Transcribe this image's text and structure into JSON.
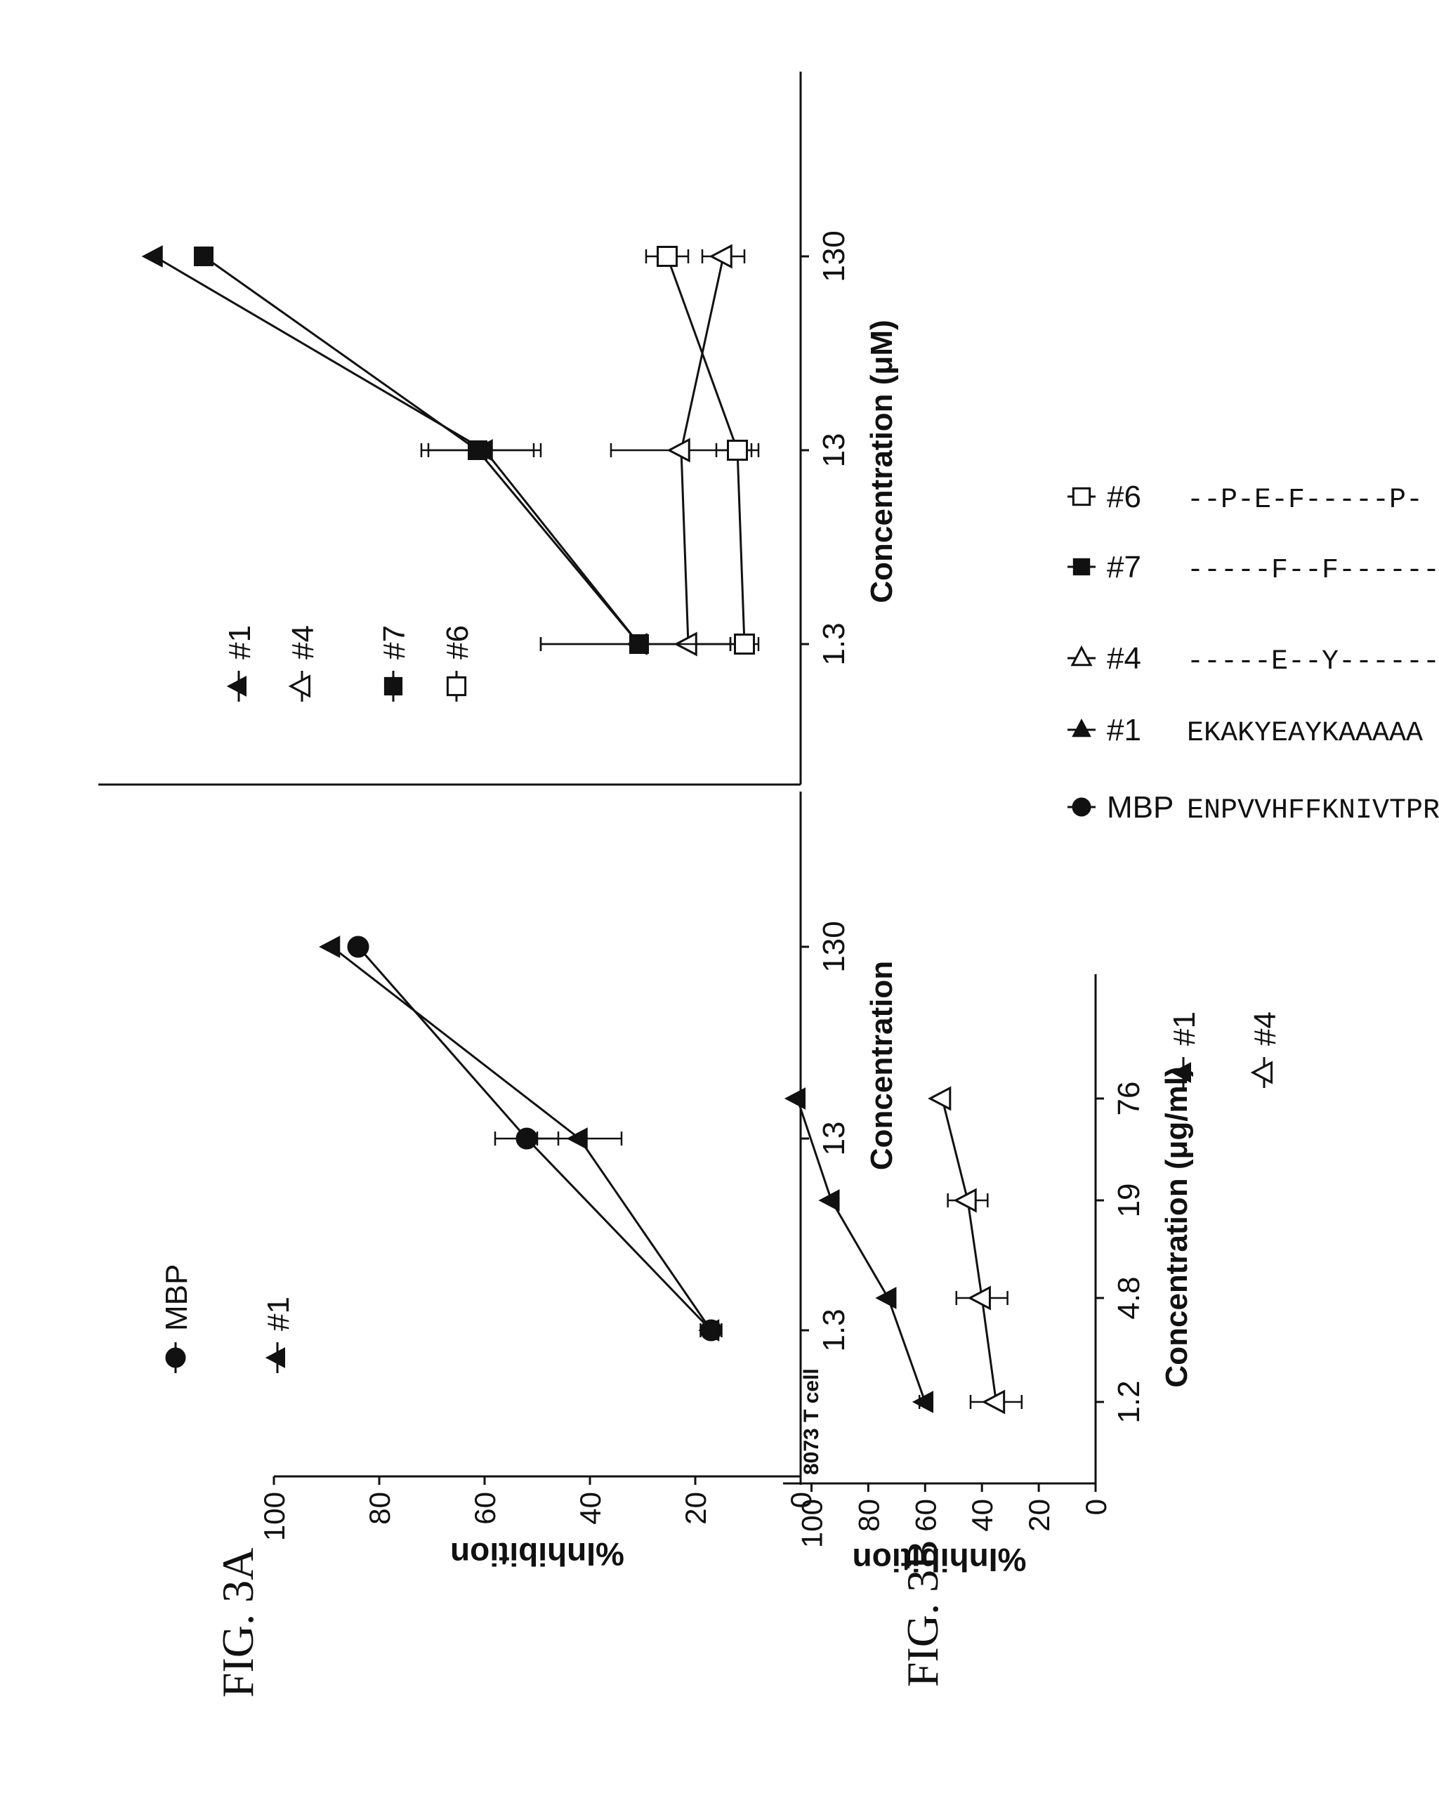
{
  "figure_labels": {
    "fig3a": "FIG. 3A",
    "fig3b": "FIG. 3B"
  },
  "colors": {
    "ink": "#111111",
    "paper": "#ffffff"
  },
  "chart_data": [
    {
      "id": "fig3a-left",
      "type": "line",
      "ylabel": "%Inhibition",
      "xlabel": "Concentration",
      "ylim": [
        0,
        100
      ],
      "yticks": [
        0,
        20,
        40,
        60,
        80,
        100
      ],
      "x_scale": "log",
      "xticklabels": [
        "1.3",
        "13",
        "130"
      ],
      "x": [
        1.3,
        13,
        130
      ],
      "legend": [
        {
          "label": "MBP",
          "marker": "circle-filled"
        },
        {
          "label": "#1",
          "marker": "triangle-filled"
        }
      ],
      "series": [
        {
          "name": "MBP",
          "marker": "circle-filled",
          "values": [
            17,
            52,
            84
          ],
          "errors": [
            1,
            6,
            0
          ]
        },
        {
          "name": "#1",
          "marker": "triangle-filled",
          "values": [
            17,
            42,
            89
          ],
          "errors": [
            2,
            8,
            0
          ]
        }
      ]
    },
    {
      "id": "fig3a-right",
      "type": "line",
      "xlabel": "Concentration (μM)",
      "ylim": [
        0,
        100
      ],
      "x_scale": "log",
      "xticklabels": [
        "1.3",
        "13",
        "130"
      ],
      "x": [
        1.3,
        13,
        130
      ],
      "legend": [
        {
          "label": "#1",
          "marker": "triangle-filled"
        },
        {
          "label": "#4",
          "marker": "triangle-open"
        },
        {
          "label": "#7",
          "marker": "square-filled"
        },
        {
          "label": "#6",
          "marker": "square-open"
        }
      ],
      "series": [
        {
          "name": "#1",
          "marker": "triangle-filled",
          "values": [
            23,
            45,
            92
          ],
          "errors": [
            14,
            8,
            0
          ]
        },
        {
          "name": "#4",
          "marker": "triangle-open",
          "values": [
            16,
            17,
            11
          ],
          "errors": [
            6,
            10,
            3
          ]
        },
        {
          "name": "#7",
          "marker": "square-filled",
          "values": [
            23,
            46,
            85
          ],
          "errors": [
            14,
            8,
            0
          ]
        },
        {
          "name": "#6",
          "marker": "square-open",
          "values": [
            8,
            9,
            19
          ],
          "errors": [
            2,
            3,
            3
          ]
        }
      ]
    },
    {
      "id": "fig3b",
      "type": "line",
      "annotation": "8073 T cell",
      "ylabel": "%Inhibition",
      "xlabel": "Concentration (μg/ml)",
      "ylim": [
        0,
        110
      ],
      "yticks": [
        0,
        20,
        40,
        60,
        80,
        100
      ],
      "x_scale": "log",
      "xticklabels": [
        "1.2",
        "4.8",
        "19",
        "76"
      ],
      "x": [
        1.2,
        4.8,
        19,
        76
      ],
      "legend": [
        {
          "label": "#1",
          "marker": "triangle-filled"
        },
        {
          "label": "#4",
          "marker": "triangle-open"
        }
      ],
      "series": [
        {
          "name": "#1",
          "marker": "triangle-filled",
          "values": [
            60,
            73,
            93,
            105
          ],
          "errors": [
            2,
            0,
            0,
            0
          ]
        },
        {
          "name": "#4",
          "marker": "triangle-open",
          "values": [
            35,
            40,
            45,
            54
          ],
          "errors": [
            9,
            9,
            7,
            0
          ]
        }
      ]
    }
  ],
  "sequence_legend": {
    "rows": [
      {
        "marker": "circle-filled",
        "name": "MBP",
        "sequence": "ENPVVHFFKNIVTPR"
      },
      {
        "marker": "triangle-filled",
        "name": "#1",
        "sequence": "EKAKYEAYKAAAAA"
      },
      {
        "marker": "triangle-open",
        "name": "#4",
        "sequence": "-----E--Y-------"
      },
      {
        "marker": "square-filled",
        "name": "#7",
        "sequence": "-----F--F-------"
      },
      {
        "marker": "square-open",
        "name": "#6",
        "sequence": "--P-E-F-----P-"
      }
    ]
  }
}
